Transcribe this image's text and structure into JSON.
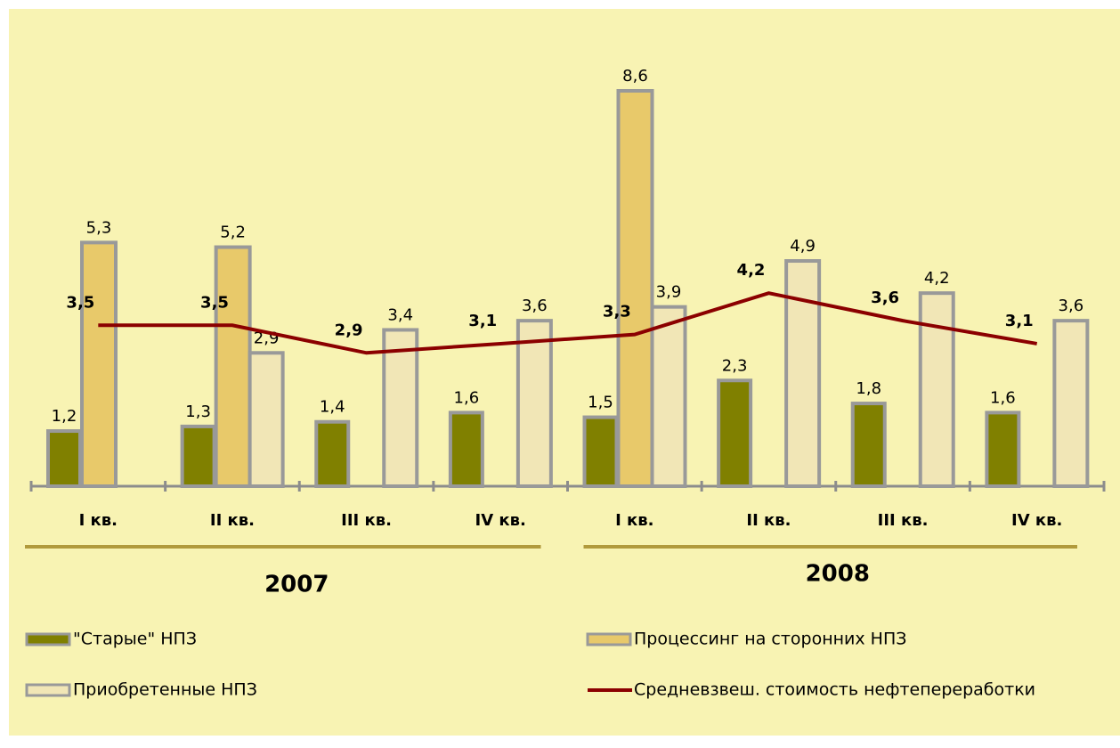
{
  "chart_data": {
    "type": "bar",
    "categories": [
      "I кв.",
      "II кв.",
      "III кв.",
      "IV кв.",
      "I кв.",
      "II кв.",
      "III кв.",
      "IV кв."
    ],
    "groups": [
      "2007",
      "2008"
    ],
    "series": [
      {
        "name": "\"Старые\" НПЗ",
        "color": "#808000",
        "values": [
          1.2,
          1.3,
          1.4,
          1.6,
          1.5,
          2.3,
          1.8,
          1.6
        ],
        "value_labels": [
          "1,2",
          "1,3",
          "1,4",
          "1,6",
          "1,5",
          "2,3",
          "1,8",
          "1,6"
        ]
      },
      {
        "name": "Процессинг на сторонних НПЗ",
        "color": "#e8c96a",
        "values": [
          5.3,
          5.2,
          null,
          null,
          8.6,
          null,
          null,
          null
        ],
        "value_labels": [
          "5,3",
          "5,2",
          null,
          null,
          "8,6",
          null,
          null,
          null
        ]
      },
      {
        "name": "Приобретенные НПЗ",
        "color": "#f1e6b6",
        "values": [
          null,
          2.9,
          3.4,
          3.6,
          3.9,
          4.9,
          4.2,
          3.6
        ],
        "value_labels": [
          null,
          "2,9",
          "3,4",
          "3,6",
          "3,9",
          "4,9",
          "4,2",
          "3,6"
        ]
      },
      {
        "name": "Средневзвеш. стоимость нефтепереработки",
        "type": "line",
        "color": "#8b0000",
        "values": [
          3.5,
          3.5,
          2.9,
          3.1,
          3.3,
          4.2,
          3.6,
          3.1
        ],
        "value_labels": [
          "3,5",
          "3,5",
          "2,9",
          "3,1",
          "3,3",
          "4,2",
          "3,6",
          "3,1"
        ]
      }
    ]
  }
}
